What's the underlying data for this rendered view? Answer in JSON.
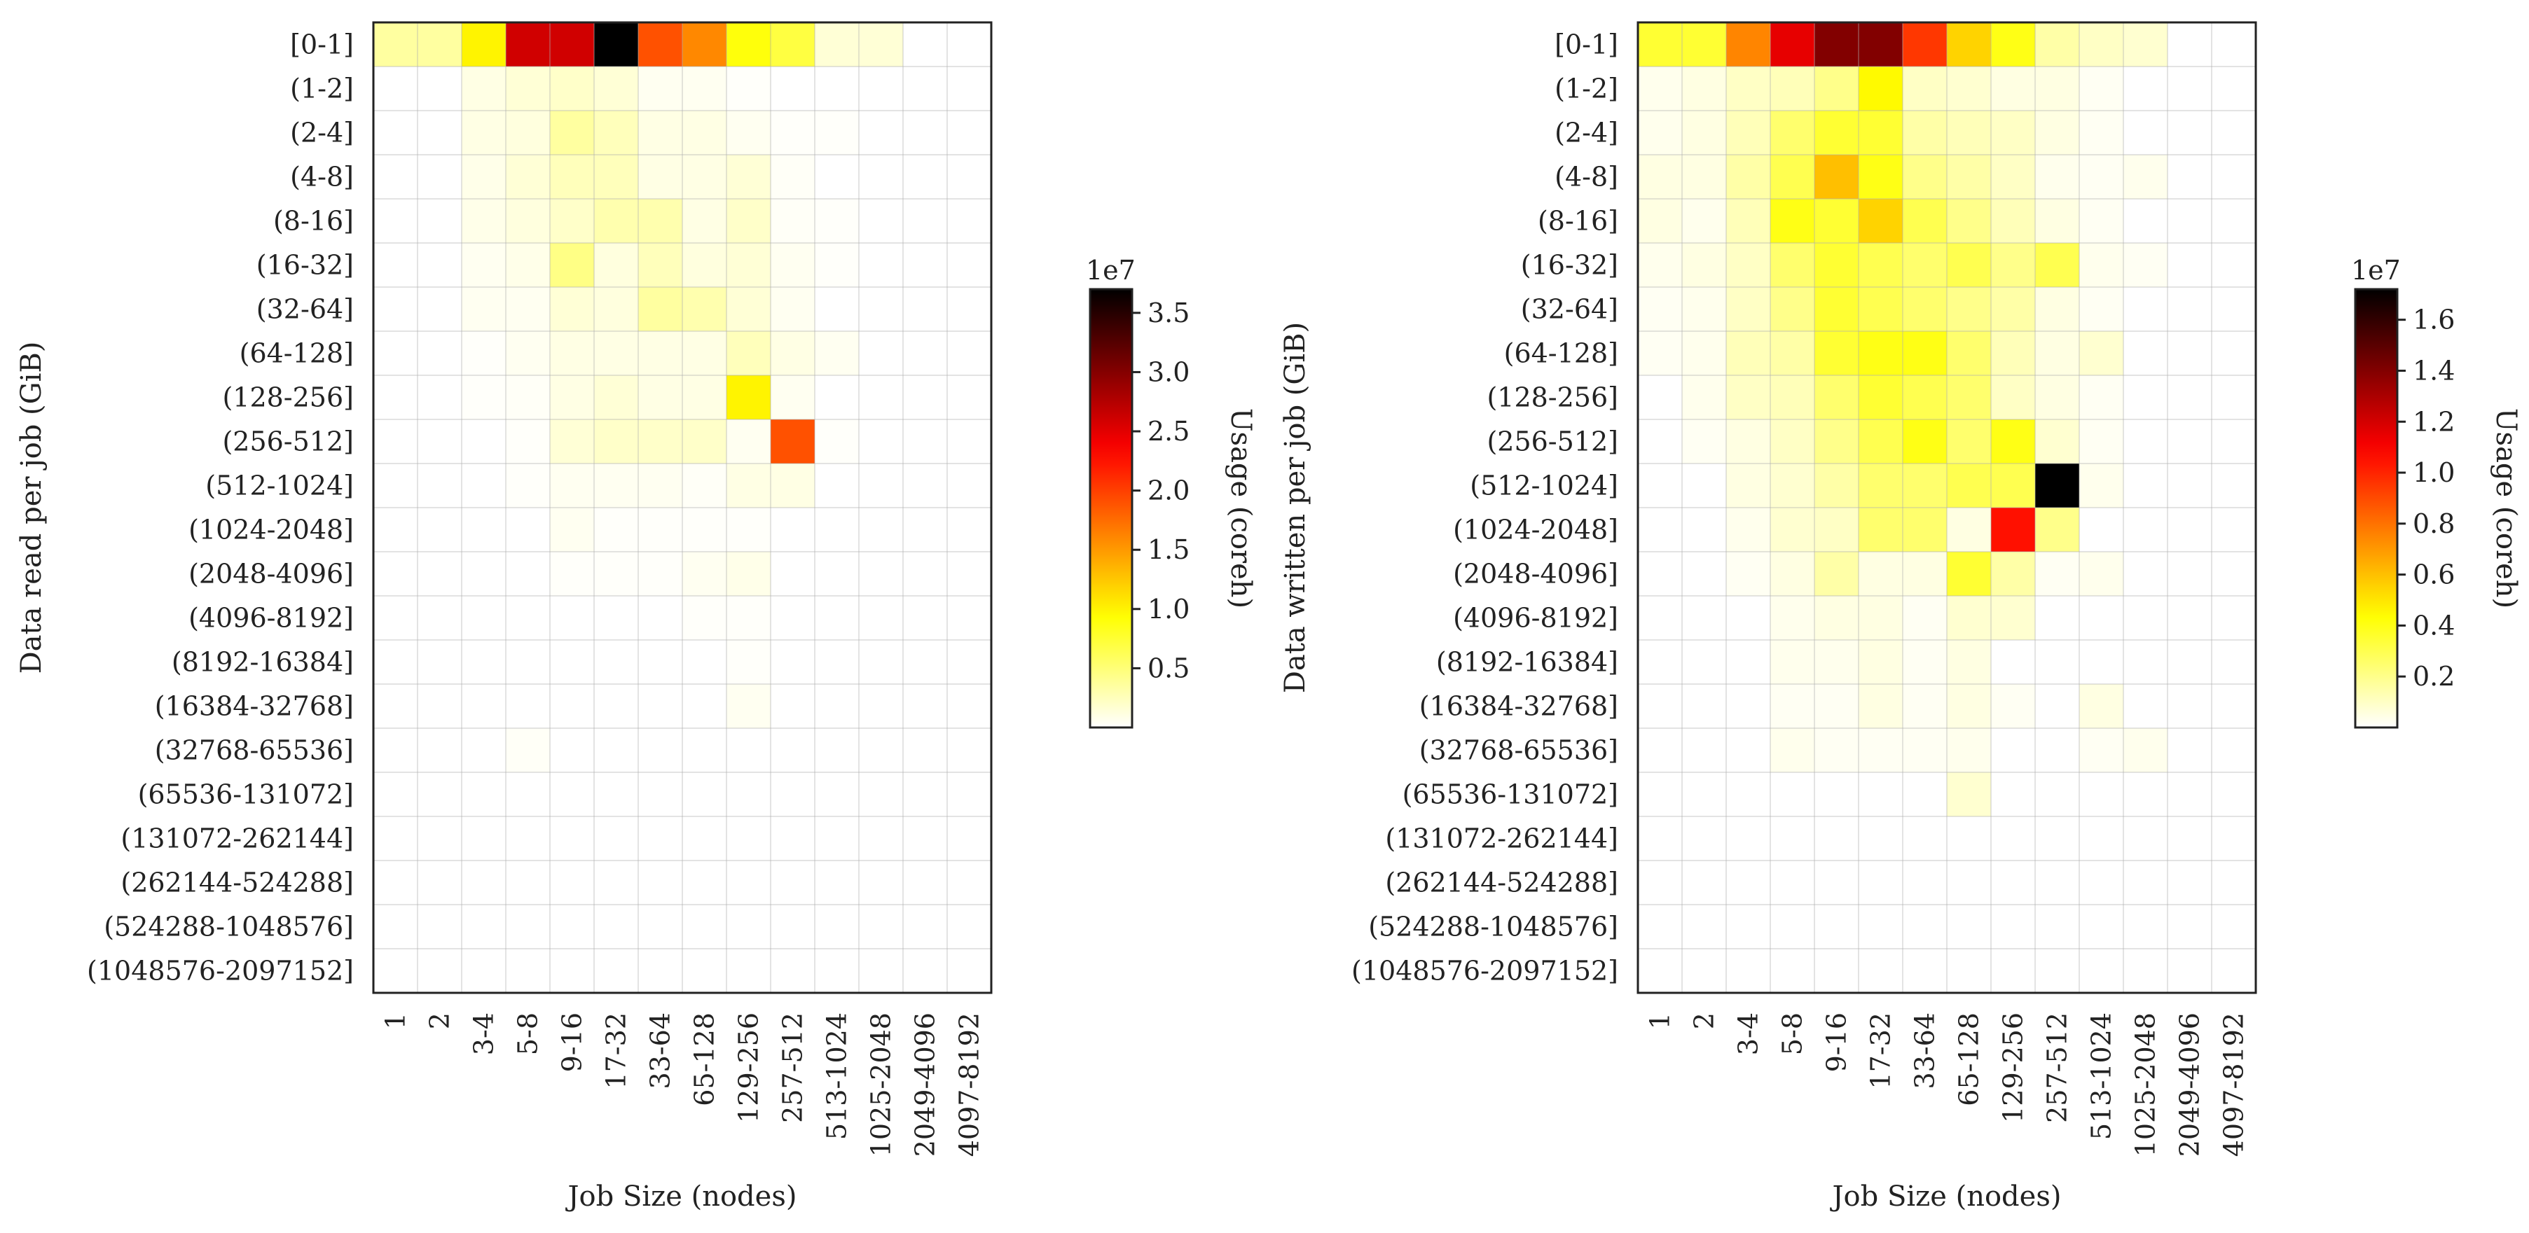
{
  "chart_data": [
    {
      "type": "heatmap",
      "title": "",
      "xlabel": "Job Size (nodes)",
      "ylabel": "Data read per job (GiB)",
      "x_categories": [
        "1",
        "2",
        "3-4",
        "5-8",
        "9-16",
        "17-32",
        "33-64",
        "65-128",
        "129-256",
        "257-512",
        "513-1024",
        "1025-2048",
        "2049-4096",
        "4097-8192"
      ],
      "y_categories": [
        "[0-1]",
        "(1-2]",
        "(2-4]",
        "(4-8]",
        "(8-16]",
        "(16-32]",
        "(32-64]",
        "(64-128]",
        "(128-256]",
        "(256-512]",
        "(512-1024]",
        "(1024-2048]",
        "(2048-4096]",
        "(4096-8192]",
        "(8192-16384]",
        "(16384-32768]",
        "(32768-65536]",
        "(65536-131072]",
        "(131072-262144]",
        "(262144-524288]",
        "(524288-1048576]",
        "(1048576-2097152]"
      ],
      "colorbar": {
        "label": "Usage (coreh)",
        "exponent_label": "1e7",
        "min": 0,
        "max": 3.7,
        "ticks": [
          0.5,
          1.0,
          1.5,
          2.0,
          2.5,
          3.0,
          3.5
        ],
        "tick_labels": [
          "0.5",
          "1.0",
          "1.5",
          "2.0",
          "2.5",
          "3.0",
          "3.5"
        ],
        "colormap": "hot_r"
      },
      "grid": true,
      "values": [
        [
          0.35,
          0.35,
          1.0,
          2.6,
          2.6,
          3.7,
          1.9,
          1.6,
          0.9,
          0.7,
          0.15,
          0.15,
          0.0,
          0.0
        ],
        [
          0.0,
          0.0,
          0.1,
          0.15,
          0.2,
          0.15,
          0.05,
          0.05,
          0.02,
          0.0,
          0.0,
          0.0,
          0.0,
          0.0
        ],
        [
          0.0,
          0.0,
          0.1,
          0.12,
          0.35,
          0.25,
          0.1,
          0.1,
          0.05,
          0.02,
          0.02,
          0.0,
          0.0,
          0.0
        ],
        [
          0.0,
          0.0,
          0.08,
          0.15,
          0.25,
          0.25,
          0.1,
          0.1,
          0.15,
          0.03,
          0.0,
          0.0,
          0.0,
          0.0
        ],
        [
          0.0,
          0.0,
          0.08,
          0.12,
          0.2,
          0.3,
          0.3,
          0.1,
          0.2,
          0.03,
          0.02,
          0.0,
          0.0,
          0.0
        ],
        [
          0.0,
          0.0,
          0.05,
          0.08,
          0.45,
          0.12,
          0.25,
          0.12,
          0.15,
          0.05,
          0.02,
          0.0,
          0.0,
          0.0
        ],
        [
          0.0,
          0.0,
          0.05,
          0.05,
          0.15,
          0.12,
          0.35,
          0.3,
          0.15,
          0.05,
          0.0,
          0.0,
          0.0,
          0.0
        ],
        [
          0.0,
          0.0,
          0.02,
          0.05,
          0.1,
          0.1,
          0.1,
          0.1,
          0.25,
          0.1,
          0.05,
          0.0,
          0.0,
          0.0
        ],
        [
          0.0,
          0.0,
          0.02,
          0.03,
          0.1,
          0.15,
          0.1,
          0.1,
          1.0,
          0.05,
          0.0,
          0.0,
          0.0,
          0.0
        ],
        [
          0.0,
          0.0,
          0.0,
          0.02,
          0.15,
          0.2,
          0.2,
          0.2,
          0.05,
          1.9,
          0.02,
          0.0,
          0.0,
          0.0
        ],
        [
          0.0,
          0.0,
          0.0,
          0.02,
          0.05,
          0.05,
          0.05,
          0.03,
          0.1,
          0.1,
          0.0,
          0.0,
          0.0,
          0.0
        ],
        [
          0.0,
          0.0,
          0.0,
          0.0,
          0.05,
          0.02,
          0.02,
          0.02,
          0.02,
          0.0,
          0.0,
          0.0,
          0.0,
          0.0
        ],
        [
          0.0,
          0.0,
          0.0,
          0.0,
          0.02,
          0.02,
          0.02,
          0.05,
          0.08,
          0.0,
          0.0,
          0.0,
          0.0,
          0.0
        ],
        [
          0.0,
          0.0,
          0.0,
          0.0,
          0.0,
          0.0,
          0.0,
          0.02,
          0.02,
          0.0,
          0.0,
          0.0,
          0.0,
          0.0
        ],
        [
          0.0,
          0.0,
          0.0,
          0.0,
          0.0,
          0.0,
          0.0,
          0.0,
          0.02,
          0.0,
          0.0,
          0.0,
          0.0,
          0.0
        ],
        [
          0.0,
          0.0,
          0.0,
          0.0,
          0.0,
          0.0,
          0.0,
          0.0,
          0.05,
          0.0,
          0.0,
          0.0,
          0.0,
          0.0
        ],
        [
          0.0,
          0.0,
          0.0,
          0.03,
          0.0,
          0.0,
          0.0,
          0.0,
          0.0,
          0.0,
          0.0,
          0.0,
          0.0,
          0.0
        ],
        [
          0.0,
          0.0,
          0.0,
          0.0,
          0.0,
          0.0,
          0.0,
          0.0,
          0.0,
          0.0,
          0.0,
          0.0,
          0.0,
          0.0
        ],
        [
          0.0,
          0.0,
          0.0,
          0.0,
          0.0,
          0.0,
          0.0,
          0.0,
          0.0,
          0.0,
          0.0,
          0.0,
          0.0,
          0.0
        ],
        [
          0.0,
          0.0,
          0.0,
          0.0,
          0.0,
          0.0,
          0.0,
          0.0,
          0.0,
          0.0,
          0.0,
          0.0,
          0.0,
          0.0
        ],
        [
          0.0,
          0.0,
          0.0,
          0.0,
          0.0,
          0.0,
          0.0,
          0.0,
          0.0,
          0.0,
          0.0,
          0.0,
          0.0,
          0.0
        ],
        [
          0.0,
          0.0,
          0.0,
          0.0,
          0.0,
          0.0,
          0.0,
          0.0,
          0.0,
          0.0,
          0.0,
          0.0,
          0.0,
          0.0
        ]
      ]
    },
    {
      "type": "heatmap",
      "title": "",
      "xlabel": "Job Size (nodes)",
      "ylabel": "Data written per job (GiB)",
      "x_categories": [
        "1",
        "2",
        "3-4",
        "5-8",
        "9-16",
        "17-32",
        "33-64",
        "65-128",
        "129-256",
        "257-512",
        "513-1024",
        "1025-2048",
        "2049-4096",
        "4097-8192"
      ],
      "y_categories": [
        "[0-1]",
        "(1-2]",
        "(2-4]",
        "(4-8]",
        "(8-16]",
        "(16-32]",
        "(32-64]",
        "(64-128]",
        "(128-256]",
        "(256-512]",
        "(512-1024]",
        "(1024-2048]",
        "(2048-4096]",
        "(4096-8192]",
        "(8192-16384]",
        "(16384-32768]",
        "(32768-65536]",
        "(65536-131072]",
        "(131072-262144]",
        "(262144-524288]",
        "(524288-1048576]",
        "(1048576-2097152]"
      ],
      "colorbar": {
        "label": "Usage (coreh)",
        "exponent_label": "1e7",
        "min": 0,
        "max": 1.72,
        "ticks": [
          0.2,
          0.4,
          0.6,
          0.8,
          1.0,
          1.2,
          1.4,
          1.6
        ],
        "tick_labels": [
          "0.2",
          "0.4",
          "0.6",
          "0.8",
          "1.0",
          "1.2",
          "1.4",
          "1.6"
        ],
        "colormap": "hot_r"
      },
      "grid": true,
      "values": [
        [
          0.35,
          0.35,
          0.75,
          1.15,
          1.4,
          1.4,
          0.95,
          0.55,
          0.4,
          0.15,
          0.1,
          0.08,
          0.0,
          0.0
        ],
        [
          0.03,
          0.05,
          0.1,
          0.12,
          0.2,
          0.45,
          0.1,
          0.08,
          0.05,
          0.05,
          0.02,
          0.0,
          0.0,
          0.0
        ],
        [
          0.03,
          0.05,
          0.12,
          0.25,
          0.35,
          0.35,
          0.15,
          0.12,
          0.1,
          0.05,
          0.02,
          0.0,
          0.0,
          0.0
        ],
        [
          0.05,
          0.05,
          0.15,
          0.3,
          0.6,
          0.4,
          0.2,
          0.15,
          0.1,
          0.03,
          0.02,
          0.03,
          0.0,
          0.0
        ],
        [
          0.05,
          0.03,
          0.12,
          0.4,
          0.35,
          0.55,
          0.3,
          0.2,
          0.12,
          0.05,
          0.02,
          0.0,
          0.0,
          0.0
        ],
        [
          0.03,
          0.05,
          0.1,
          0.25,
          0.35,
          0.3,
          0.25,
          0.3,
          0.2,
          0.3,
          0.03,
          0.02,
          0.0,
          0.0
        ],
        [
          0.02,
          0.03,
          0.1,
          0.2,
          0.35,
          0.3,
          0.25,
          0.2,
          0.15,
          0.05,
          0.02,
          0.0,
          0.0,
          0.0
        ],
        [
          0.02,
          0.03,
          0.12,
          0.15,
          0.35,
          0.4,
          0.4,
          0.25,
          0.12,
          0.05,
          0.08,
          0.0,
          0.0,
          0.0
        ],
        [
          0.0,
          0.03,
          0.1,
          0.12,
          0.25,
          0.35,
          0.3,
          0.25,
          0.1,
          0.05,
          0.02,
          0.0,
          0.0,
          0.0
        ],
        [
          0.0,
          0.02,
          0.05,
          0.1,
          0.2,
          0.3,
          0.4,
          0.25,
          0.4,
          0.08,
          0.02,
          0.0,
          0.0,
          0.0
        ],
        [
          0.0,
          0.0,
          0.05,
          0.08,
          0.15,
          0.25,
          0.25,
          0.3,
          0.3,
          1.72,
          0.03,
          0.0,
          0.0,
          0.0
        ],
        [
          0.0,
          0.0,
          0.03,
          0.08,
          0.1,
          0.25,
          0.25,
          0.05,
          1.05,
          0.2,
          0.0,
          0.0,
          0.0,
          0.0
        ],
        [
          0.0,
          0.0,
          0.02,
          0.05,
          0.15,
          0.05,
          0.05,
          0.35,
          0.15,
          0.02,
          0.03,
          0.0,
          0.0,
          0.0
        ],
        [
          0.0,
          0.0,
          0.0,
          0.03,
          0.05,
          0.05,
          0.02,
          0.08,
          0.08,
          0.0,
          0.0,
          0.0,
          0.0,
          0.0
        ],
        [
          0.0,
          0.0,
          0.0,
          0.03,
          0.03,
          0.05,
          0.02,
          0.05,
          0.0,
          0.0,
          0.0,
          0.0,
          0.0,
          0.0
        ],
        [
          0.0,
          0.0,
          0.0,
          0.02,
          0.02,
          0.05,
          0.02,
          0.05,
          0.02,
          0.0,
          0.05,
          0.0,
          0.0,
          0.0
        ],
        [
          0.0,
          0.0,
          0.0,
          0.03,
          0.02,
          0.02,
          0.02,
          0.03,
          0.0,
          0.0,
          0.02,
          0.03,
          0.0,
          0.0
        ],
        [
          0.0,
          0.0,
          0.0,
          0.0,
          0.0,
          0.0,
          0.0,
          0.08,
          0.0,
          0.0,
          0.0,
          0.0,
          0.0,
          0.0
        ],
        [
          0.0,
          0.0,
          0.0,
          0.0,
          0.0,
          0.0,
          0.0,
          0.0,
          0.0,
          0.0,
          0.0,
          0.0,
          0.0,
          0.0
        ],
        [
          0.0,
          0.0,
          0.0,
          0.0,
          0.0,
          0.0,
          0.0,
          0.0,
          0.0,
          0.0,
          0.0,
          0.0,
          0.0,
          0.0
        ],
        [
          0.0,
          0.0,
          0.0,
          0.0,
          0.0,
          0.0,
          0.0,
          0.0,
          0.0,
          0.0,
          0.0,
          0.0,
          0.0,
          0.0
        ],
        [
          0.0,
          0.0,
          0.0,
          0.0,
          0.0,
          0.0,
          0.0,
          0.0,
          0.0,
          0.0,
          0.0,
          0.0,
          0.0,
          0.0
        ]
      ]
    }
  ]
}
